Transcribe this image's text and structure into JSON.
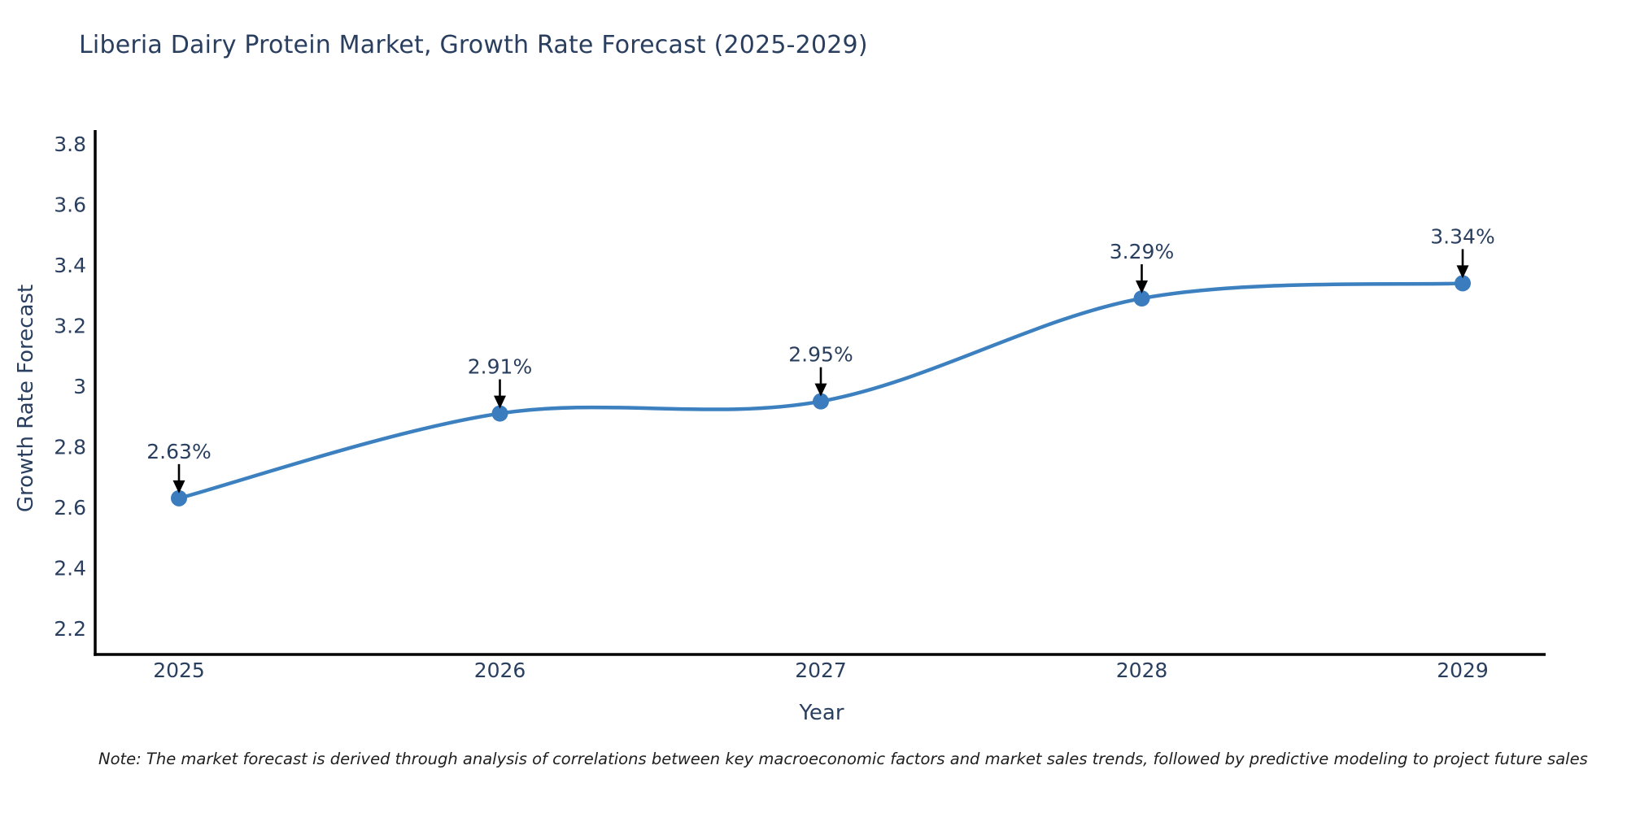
{
  "note": {
    "text": "Note: The market forecast is derived through analysis of correlations between key macroeconomic factors and market sales trends, followed by predictive modeling to project future sales"
  },
  "chart_data": {
    "type": "line",
    "title": "Liberia Dairy Protein Market, Growth Rate Forecast (2025-2029)",
    "xlabel": "Year",
    "ylabel": "Growth Rate Forecast",
    "x": [
      2025,
      2026,
      2027,
      2028,
      2029
    ],
    "values": [
      2.63,
      2.91,
      2.95,
      3.29,
      3.34
    ],
    "point_labels": [
      "2.63%",
      "2.91%",
      "2.95%",
      "3.29%",
      "3.34%"
    ],
    "xtick_labels": [
      "2025",
      "2026",
      "2027",
      "2028",
      "2029"
    ],
    "ytick_values": [
      2.2,
      2.4,
      2.6,
      2.8,
      3,
      3.2,
      3.4,
      3.6,
      3.8
    ],
    "ytick_labels": [
      "2.2",
      "2.4",
      "2.6",
      "2.8",
      "3",
      "3.2",
      "3.4",
      "3.6",
      "3.8"
    ],
    "ylim": [
      2.114,
      3.846
    ],
    "line_shape": "spline",
    "grid": false,
    "legend_position": "none",
    "colors": {
      "line": "#3c80c0",
      "marker": "#3a7cbe",
      "axis": "#000000",
      "text": "#2a3f5f",
      "annotation_arrow": "#000000"
    }
  }
}
